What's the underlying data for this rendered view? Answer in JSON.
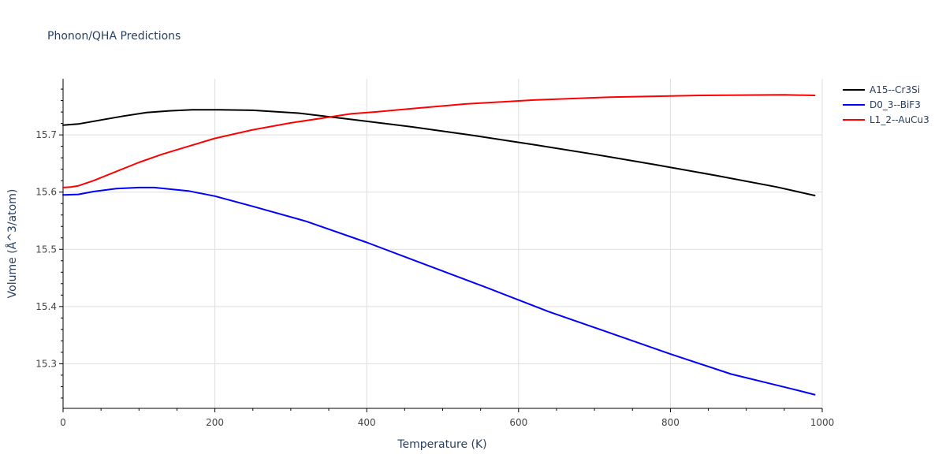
{
  "chart_data": {
    "type": "line",
    "title": "Phonon/QHA Predictions",
    "xlabel": "Temperature (K)",
    "ylabel": "Volume (Å^3/atom)",
    "xlim": [
      0,
      1000
    ],
    "ylim": [
      15.222,
      15.798
    ],
    "x_ticks": [
      0,
      200,
      400,
      600,
      800,
      1000
    ],
    "x_tick_labels": [
      "0",
      "200",
      "400",
      "600",
      "800",
      "1000"
    ],
    "y_ticks": [
      15.3,
      15.4,
      15.5,
      15.6,
      15.7
    ],
    "y_tick_labels": [
      "15.3",
      "15.4",
      "15.5",
      "15.6",
      "15.7"
    ],
    "grid": true,
    "legend_position": "right-top",
    "series": [
      {
        "name": "A15--Cr3Si",
        "color": "#000000",
        "x": [
          0,
          20,
          50,
          80,
          110,
          140,
          170,
          205,
          250,
          310,
          380,
          460,
          540,
          620,
          700,
          780,
          860,
          940,
          990
        ],
        "y": [
          15.717,
          15.719,
          15.726,
          15.733,
          15.739,
          15.742,
          15.744,
          15.744,
          15.743,
          15.738,
          15.727,
          15.714,
          15.699,
          15.683,
          15.666,
          15.648,
          15.629,
          15.609,
          15.594
        ]
      },
      {
        "name": "D0_3--BiF3",
        "color": "#0000ff",
        "x": [
          0,
          20,
          40,
          70,
          100,
          120,
          165,
          200,
          250,
          320,
          400,
          480,
          560,
          640,
          720,
          800,
          880,
          960,
          990
        ],
        "y": [
          15.595,
          15.596,
          15.601,
          15.606,
          15.608,
          15.608,
          15.602,
          15.593,
          15.575,
          15.549,
          15.512,
          15.472,
          15.432,
          15.391,
          15.354,
          15.317,
          15.282,
          15.256,
          15.246
        ]
      },
      {
        "name": "L1_2--AuCu3",
        "color": "#ff0000",
        "x": [
          0,
          10,
          20,
          40,
          70,
          100,
          130,
          160,
          200,
          250,
          300,
          350,
          380,
          410,
          460,
          530,
          620,
          720,
          840,
          950,
          990
        ],
        "y": [
          15.608,
          15.609,
          15.611,
          15.62,
          15.636,
          15.652,
          15.666,
          15.678,
          15.694,
          15.709,
          15.721,
          15.731,
          15.737,
          15.74,
          15.746,
          15.754,
          15.761,
          15.766,
          15.769,
          15.77,
          15.769
        ]
      }
    ]
  }
}
